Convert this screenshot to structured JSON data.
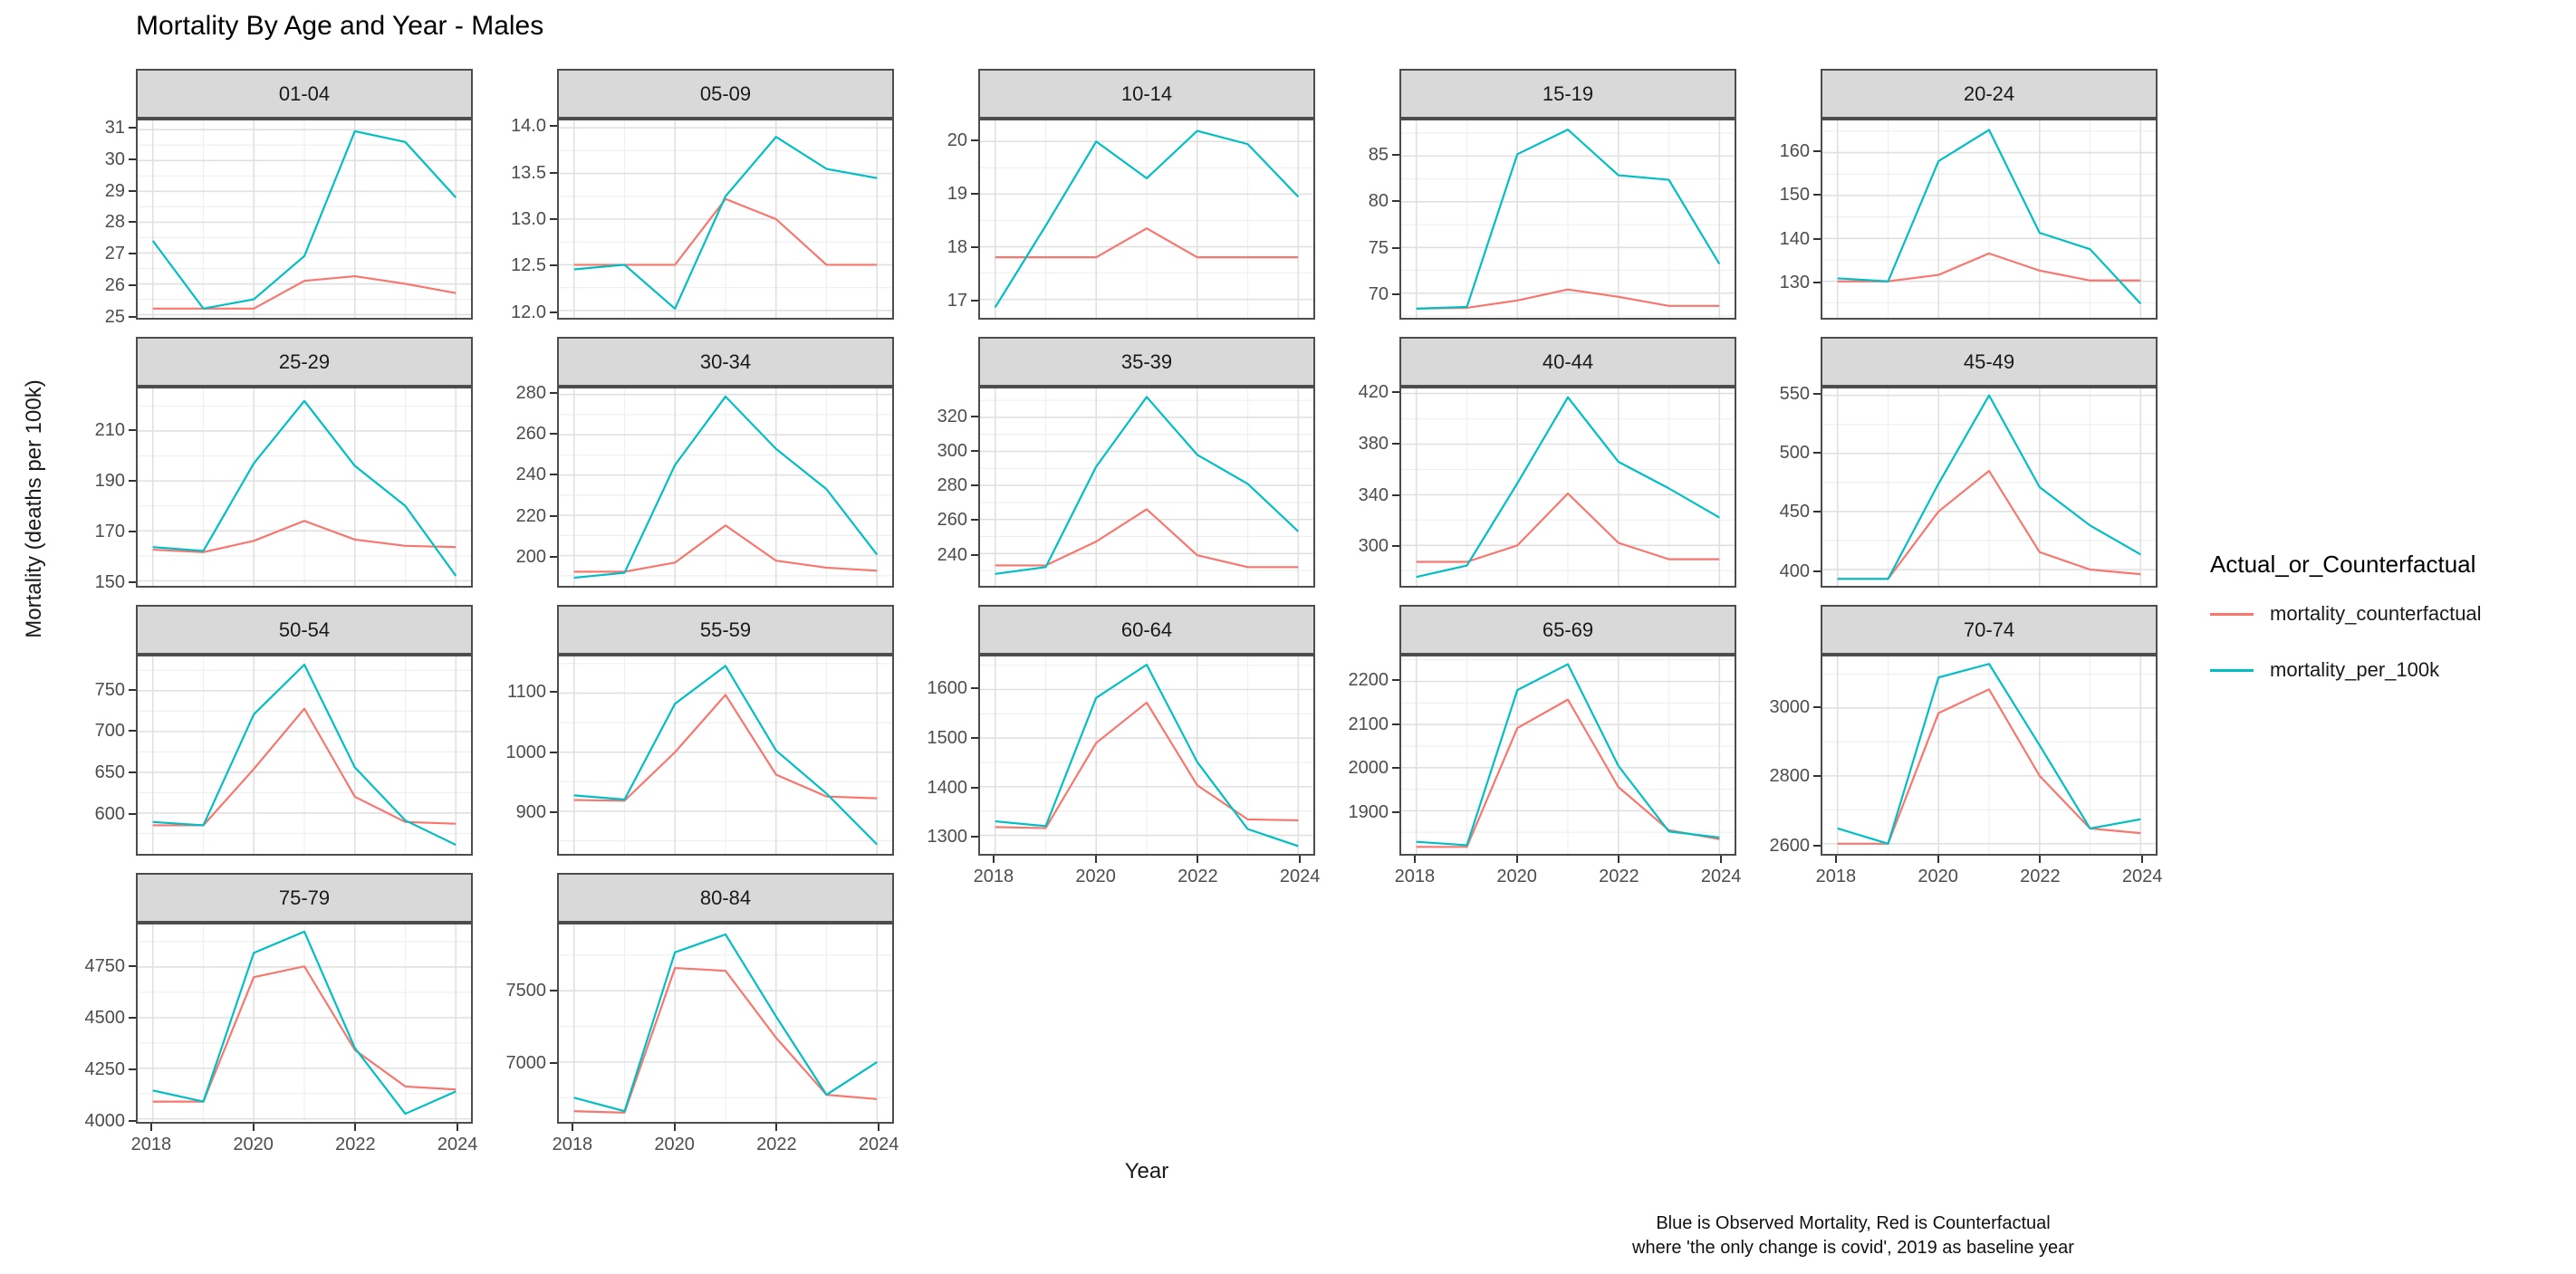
{
  "title": "Mortality By Age and Year - Males",
  "y_axis_title": "Mortality (deaths per 100k)",
  "x_axis_title": "Year",
  "caption": {
    "line1": "Blue is Observed Mortality, Red is Counterfactual",
    "line2": "where 'the only change is covid', 2019 as baseline year"
  },
  "legend": {
    "title": "Actual_or_Counterfactual",
    "items": [
      {
        "label": "mortality_counterfactual",
        "color": "#F8766D"
      },
      {
        "label": "mortality_per_100k",
        "color": "#00BFC4"
      }
    ]
  },
  "chart_data": {
    "type": "line",
    "title": "Mortality By Age and Year - Males",
    "xlabel": "Year",
    "ylabel": "Mortality (deaths per 100k)",
    "legend_position": "right",
    "grid": true,
    "x": [
      2018,
      2019,
      2020,
      2021,
      2022,
      2023,
      2024
    ],
    "xlim": [
      2017.7,
      2024.3
    ],
    "x_ticks": [
      2018,
      2020,
      2022,
      2024
    ],
    "x_tick_labels": [
      "2018",
      "2020",
      "2022",
      "2024"
    ],
    "x_minor": [
      2019,
      2021,
      2023
    ],
    "colors": {
      "mortality_counterfactual": "#F8766D",
      "mortality_per_100k": "#00BFC4"
    },
    "facets": [
      {
        "label": "01-04",
        "ylim": [
          24.9,
          31.3
        ],
        "yticks": [
          25,
          26,
          27,
          28,
          29,
          30,
          31
        ],
        "ytick_labels": [
          "25",
          "26",
          "27",
          "28",
          "29",
          "30",
          "31"
        ],
        "show_x_axis": false,
        "mortality_per_100k": [
          27.4,
          25.2,
          25.5,
          26.9,
          30.95,
          30.6,
          28.8
        ],
        "mortality_counterfactual": [
          25.2,
          25.2,
          25.2,
          26.1,
          26.25,
          26.0,
          25.7
        ]
      },
      {
        "label": "05-09",
        "ylim": [
          11.92,
          14.08
        ],
        "yticks": [
          12.0,
          12.5,
          13.0,
          13.5,
          14.0
        ],
        "ytick_labels": [
          "12.0",
          "12.5",
          "13.0",
          "13.5",
          "14.0"
        ],
        "show_x_axis": false,
        "mortality_per_100k": [
          12.45,
          12.5,
          12.02,
          13.25,
          13.9,
          13.55,
          13.45
        ],
        "mortality_counterfactual": [
          12.5,
          12.5,
          12.5,
          13.22,
          13.0,
          12.5,
          12.5
        ]
      },
      {
        "label": "10-14",
        "ylim": [
          16.65,
          20.4
        ],
        "yticks": [
          17,
          18,
          19,
          20
        ],
        "ytick_labels": [
          "17",
          "18",
          "19",
          "20"
        ],
        "show_x_axis": false,
        "mortality_per_100k": [
          16.85,
          18.4,
          20.0,
          19.3,
          20.2,
          19.95,
          18.95
        ],
        "mortality_counterfactual": [
          17.8,
          17.8,
          17.8,
          18.35,
          17.8,
          17.8,
          17.8
        ]
      },
      {
        "label": "15-19",
        "ylim": [
          67.3,
          88.9
        ],
        "yticks": [
          70,
          75,
          80,
          85
        ],
        "ytick_labels": [
          "70",
          "75",
          "80",
          "85"
        ],
        "show_x_axis": false,
        "mortality_per_100k": [
          68.3,
          68.5,
          85.2,
          87.9,
          82.9,
          82.4,
          73.2
        ],
        "mortality_counterfactual": [
          68.3,
          68.4,
          69.2,
          70.4,
          69.6,
          68.6,
          68.6
        ]
      },
      {
        "label": "20-24",
        "ylim": [
          121.5,
          167.5
        ],
        "yticks": [
          130,
          140,
          150,
          160
        ],
        "ytick_labels": [
          "130",
          "140",
          "150",
          "160"
        ],
        "show_x_axis": false,
        "mortality_per_100k": [
          130.7,
          130.0,
          158.0,
          165.3,
          141.3,
          137.5,
          124.8
        ],
        "mortality_counterfactual": [
          130.0,
          130.0,
          131.5,
          136.5,
          132.5,
          130.2,
          130.2
        ]
      },
      {
        "label": "25-29",
        "ylim": [
          148,
          227
        ],
        "yticks": [
          150,
          170,
          190,
          210
        ],
        "ytick_labels": [
          "150",
          "170",
          "190",
          "210"
        ],
        "show_x_axis": false,
        "mortality_per_100k": [
          163.5,
          162.0,
          197.0,
          222.0,
          196.0,
          180.0,
          152.0
        ],
        "mortality_counterfactual": [
          162.5,
          161.5,
          166.0,
          174.0,
          166.5,
          164.0,
          163.5
        ]
      },
      {
        "label": "30-34",
        "ylim": [
          185,
          283
        ],
        "yticks": [
          200,
          220,
          240,
          260,
          280
        ],
        "ytick_labels": [
          "200",
          "220",
          "240",
          "260",
          "280"
        ],
        "show_x_axis": false,
        "mortality_per_100k": [
          189.0,
          191.5,
          245.0,
          279.0,
          253.0,
          233.0,
          200.5
        ],
        "mortality_counterfactual": [
          192.0,
          192.0,
          196.5,
          215.0,
          197.5,
          194.0,
          192.5
        ]
      },
      {
        "label": "35-39",
        "ylim": [
          221,
          337
        ],
        "yticks": [
          240,
          260,
          280,
          300,
          320
        ],
        "ytick_labels": [
          "240",
          "260",
          "280",
          "300",
          "320"
        ],
        "show_x_axis": false,
        "mortality_per_100k": [
          228,
          232,
          291,
          332,
          298,
          281,
          253
        ],
        "mortality_counterfactual": [
          233,
          233,
          247,
          266,
          239,
          232,
          232
        ]
      },
      {
        "label": "40-44",
        "ylim": [
          268,
          424
        ],
        "yticks": [
          300,
          340,
          380,
          420
        ],
        "ytick_labels": [
          "300",
          "340",
          "380",
          "420"
        ],
        "show_x_axis": false,
        "mortality_per_100k": [
          275,
          284,
          349,
          417,
          366,
          345,
          322
        ],
        "mortality_counterfactual": [
          287,
          287,
          300,
          341,
          302,
          289,
          289
        ]
      },
      {
        "label": "45-49",
        "ylim": [
          386,
          556
        ],
        "yticks": [
          400,
          450,
          500,
          550
        ],
        "ytick_labels": [
          "400",
          "450",
          "500",
          "550"
        ],
        "show_x_axis": false,
        "mortality_per_100k": [
          392,
          392,
          474,
          550,
          471,
          438,
          413
        ],
        "mortality_counterfactual": [
          392,
          392,
          450,
          485,
          415,
          400,
          396
        ]
      },
      {
        "label": "50-54",
        "ylim": [
          550,
          792
        ],
        "yticks": [
          600,
          650,
          700,
          750
        ],
        "ytick_labels": [
          "600",
          "650",
          "700",
          "750"
        ],
        "show_x_axis": false,
        "mortality_per_100k": [
          589,
          585,
          721,
          782,
          656,
          591,
          561
        ],
        "mortality_counterfactual": [
          585,
          585,
          654,
          728,
          620,
          589,
          587
        ]
      },
      {
        "label": "55-59",
        "ylim": [
          828,
          1162
        ],
        "yticks": [
          900,
          1000,
          1100
        ],
        "ytick_labels": [
          "900",
          "1000",
          "1100"
        ],
        "show_x_axis": false,
        "mortality_per_100k": [
          927,
          920,
          1082,
          1146,
          1003,
          930,
          844
        ],
        "mortality_counterfactual": [
          919,
          918,
          1000,
          1097,
          962,
          925,
          922
        ]
      },
      {
        "label": "60-64",
        "ylim": [
          1262,
          1668
        ],
        "yticks": [
          1300,
          1400,
          1500,
          1600
        ],
        "ytick_labels": [
          "1300",
          "1400",
          "1500",
          "1600"
        ],
        "show_x_axis": true,
        "mortality_per_100k": [
          1329,
          1319,
          1583,
          1651,
          1451,
          1313,
          1278
        ],
        "mortality_counterfactual": [
          1317,
          1315,
          1490,
          1573,
          1403,
          1333,
          1331
        ]
      },
      {
        "label": "65-69",
        "ylim": [
          1800,
          2258
        ],
        "yticks": [
          1900,
          2000,
          2100,
          2200
        ],
        "ytick_labels": [
          "1900",
          "2000",
          "2100",
          "2200"
        ],
        "show_x_axis": true,
        "mortality_per_100k": [
          1828,
          1820,
          2180,
          2240,
          2004,
          1852,
          1838
        ],
        "mortality_counterfactual": [
          1816,
          1816,
          2092,
          2158,
          1955,
          1855,
          1834
        ]
      },
      {
        "label": "70-74",
        "ylim": [
          2570,
          3152
        ],
        "yticks": [
          2600,
          2800,
          3000
        ],
        "ytick_labels": [
          "2600",
          "2800",
          "3000"
        ],
        "show_x_axis": true,
        "mortality_per_100k": [
          2645,
          2600,
          3090,
          3130,
          2890,
          2645,
          2672
        ],
        "mortality_counterfactual": [
          2600,
          2600,
          2985,
          3055,
          2800,
          2645,
          2631
        ]
      },
      {
        "label": "75-79",
        "ylim": [
          3985,
          4960
        ],
        "yticks": [
          4000,
          4250,
          4500,
          4750
        ],
        "ytick_labels": [
          "4000",
          "4250",
          "4500",
          "4750"
        ],
        "show_x_axis": true,
        "mortality_per_100k": [
          4140,
          4085,
          4820,
          4925,
          4350,
          4025,
          4135
        ],
        "mortality_counterfactual": [
          4085,
          4085,
          4700,
          4753,
          4340,
          4160,
          4145
        ]
      },
      {
        "label": "80-84",
        "ylim": [
          6580,
          7965
        ],
        "yticks": [
          7000,
          7500
        ],
        "ytick_labels": [
          "7000",
          "7500"
        ],
        "show_x_axis": true,
        "mortality_per_100k": [
          6750,
          6655,
          7770,
          7895,
          7320,
          6770,
          7000
        ],
        "mortality_counterfactual": [
          6655,
          6645,
          7660,
          7640,
          7170,
          6770,
          6740
        ]
      }
    ]
  }
}
